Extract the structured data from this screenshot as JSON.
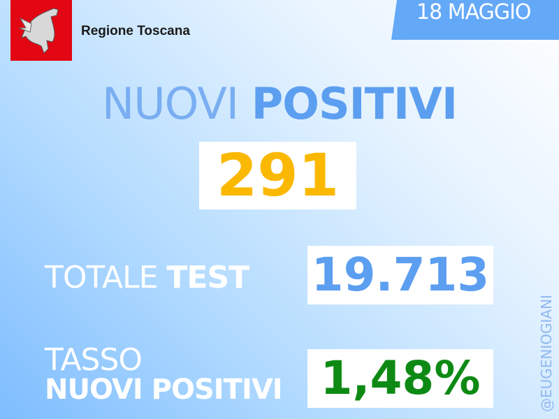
{
  "header": {
    "logo_alt": "Regione Toscana pegasus",
    "region": "Regione Toscana",
    "date": "18 MAGGIO"
  },
  "title": {
    "light": "NUOVI ",
    "bold": "POSITIVI"
  },
  "new_positives": "291",
  "total_test": {
    "label_light": "TOTALE ",
    "label_bold": "TEST",
    "value": "19.713"
  },
  "rate": {
    "label_line1": "TASSO",
    "label_line2": "NUOVI POSITIVI",
    "value": "1,48%"
  },
  "handle": "@EUGENIOGIANI",
  "colors": {
    "accent_blue": "#5c9ef0",
    "positives_yellow": "#fbb800",
    "rate_green": "#0e8a14",
    "logo_red": "#e30613"
  }
}
